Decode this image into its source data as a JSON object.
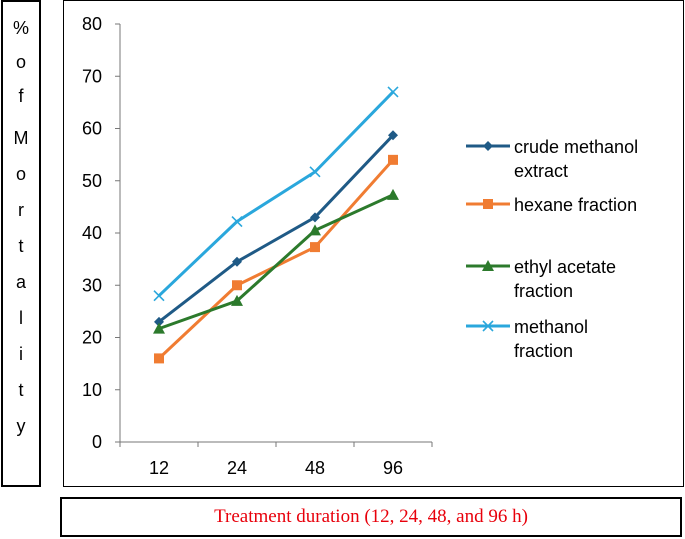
{
  "chart_data": {
    "type": "line",
    "title": "",
    "xlabel": "Treatment duration (12, 24, 48, and 96 h)",
    "ylabel": "% of Mortality",
    "ylabel_chars": [
      "%",
      "o",
      "f",
      "M",
      "o",
      "r",
      "t",
      "a",
      "l",
      "i",
      "t",
      "y"
    ],
    "categories": [
      "12",
      "24",
      "48",
      "96"
    ],
    "ylim": [
      0,
      80
    ],
    "yticks": [
      0,
      10,
      20,
      30,
      40,
      50,
      60,
      70,
      80
    ],
    "yticks_labels": [
      "0",
      "10",
      "20",
      "30",
      "40",
      "50",
      "60",
      "70",
      "80"
    ],
    "grid": false,
    "legend_position": "right",
    "series": [
      {
        "name": "crude methanol extract",
        "legend_lines": [
          "crude methanol",
          "extract"
        ],
        "values": [
          23,
          34.5,
          43,
          58.7
        ],
        "color": "#1f5a86",
        "marker": "diamond"
      },
      {
        "name": "hexane fraction",
        "legend_lines": [
          "hexane fraction"
        ],
        "values": [
          16,
          30,
          37.3,
          54
        ],
        "color": "#f07c32",
        "marker": "square"
      },
      {
        "name": "ethyl acetate fraction",
        "legend_lines": [
          "ethyl acetate",
          "fraction"
        ],
        "values": [
          21.7,
          27,
          40.5,
          47.3
        ],
        "color": "#2c7a2c",
        "marker": "triangle"
      },
      {
        "name": "methanol fraction",
        "legend_lines": [
          "methanol",
          "fraction"
        ],
        "values": [
          28,
          42.2,
          51.7,
          67
        ],
        "color": "#2aa7dc",
        "marker": "x"
      }
    ],
    "xlabel_color": "#e8000b"
  }
}
